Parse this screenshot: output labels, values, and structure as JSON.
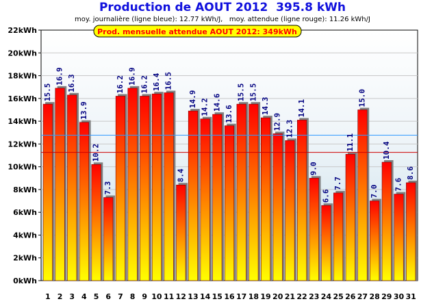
{
  "title": "Production de AOUT 2012  395.8 kWh",
  "subtitle": "moy. journalière (ligne bleue): 12.77 kWh/J,   moy. attendue (ligne rouge): 11.26 kWh/J",
  "banner": "Prod. mensuelle attendue AOUT 2012: 349kWh",
  "colors": {
    "title": "#1010dd",
    "bar_top": "#ff0000",
    "bar_bottom": "#ffff00",
    "average_line": "#3399ff",
    "expected_line": "#cc0000",
    "banner_background": "#ffff00",
    "banner_text": "#ff0000",
    "value_label": "#000080"
  },
  "chart_data": {
    "type": "bar",
    "title": "Production de AOUT 2012  395.8 kWh",
    "subtitle": "moy. journalière (ligne bleue): 12.77 kWh/J,   moy. attendue (ligne rouge): 11.26 kWh/J",
    "categories": [
      "1",
      "2",
      "3",
      "4",
      "5",
      "6",
      "7",
      "8",
      "9",
      "10",
      "11",
      "12",
      "13",
      "14",
      "15",
      "16",
      "17",
      "18",
      "19",
      "20",
      "21",
      "22",
      "23",
      "24",
      "25",
      "26",
      "27",
      "28",
      "29",
      "30",
      "31"
    ],
    "values": [
      15.5,
      16.9,
      16.3,
      13.9,
      10.2,
      7.3,
      16.2,
      16.9,
      16.2,
      16.4,
      16.5,
      8.4,
      14.9,
      14.2,
      14.6,
      13.6,
      15.5,
      15.5,
      14.3,
      12.9,
      12.3,
      14.1,
      9.0,
      6.6,
      7.7,
      11.1,
      15.0,
      7.0,
      10.4,
      7.6,
      8.6
    ],
    "value_labels": [
      "15.5",
      "16.9",
      "16.3",
      "13.9",
      "10.2",
      "7.3",
      "16.2",
      "16.9",
      "16.2",
      "16.4",
      "16.5",
      "8.4",
      "14.9",
      "14.2",
      "14.6",
      "13.6",
      "15.5",
      "15.5",
      "14.3",
      "12.9",
      "12.3",
      "14.1",
      "9.0",
      "6.6",
      "7.7",
      "11.1",
      "15.0",
      "7.0",
      "10.4",
      "7.6",
      "8.6"
    ],
    "ylim": [
      0,
      22
    ],
    "yticks": [
      {
        "value": 0,
        "label": "0kWh"
      },
      {
        "value": 2,
        "label": "2kWh"
      },
      {
        "value": 4,
        "label": "4kWh"
      },
      {
        "value": 6,
        "label": "6kWh"
      },
      {
        "value": 8,
        "label": "8kWh"
      },
      {
        "value": 10,
        "label": "10kWh"
      },
      {
        "value": 12,
        "label": "12kWh"
      },
      {
        "value": 14,
        "label": "14kWh"
      },
      {
        "value": 16,
        "label": "16kWh"
      },
      {
        "value": 18,
        "label": "18kWh"
      },
      {
        "value": 20,
        "label": "20kWh"
      },
      {
        "value": 22,
        "label": "22kWh"
      }
    ],
    "reference_lines": [
      {
        "value": 12.77,
        "color": "#3399ff"
      },
      {
        "value": 11.26,
        "color": "#cc0000"
      }
    ],
    "grid": true
  }
}
